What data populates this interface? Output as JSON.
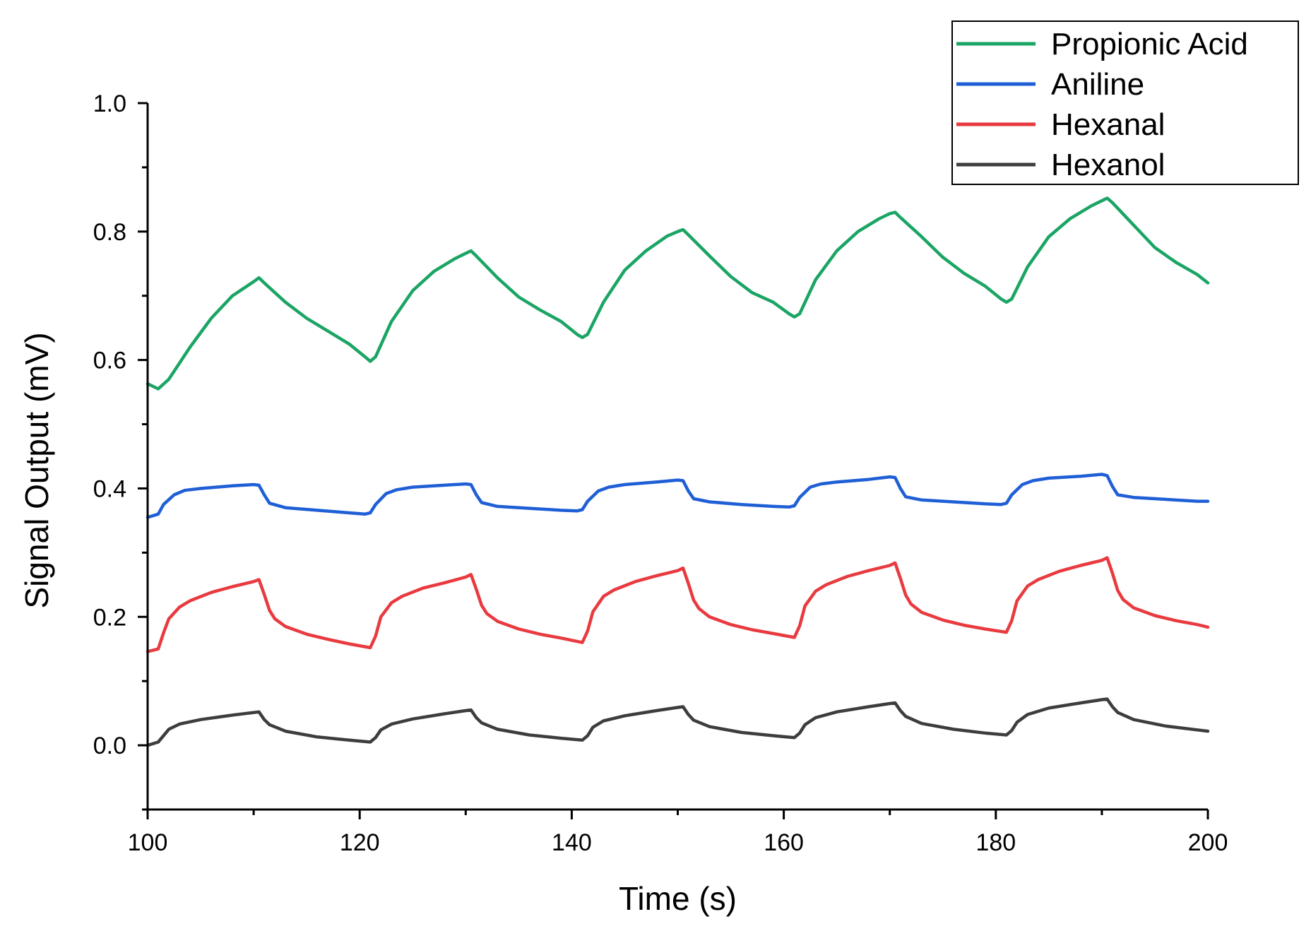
{
  "chart_data": {
    "type": "line",
    "title": "",
    "xlabel": "Time (s)",
    "ylabel": "Signal Output (mV)",
    "xlim": [
      100,
      200
    ],
    "ylim": [
      -0.1,
      1.0
    ],
    "xticks": [
      100,
      120,
      140,
      160,
      180,
      200
    ],
    "xtick_labels": [
      "100",
      "120",
      "140",
      "160",
      "180",
      "200"
    ],
    "yticks": [
      0.0,
      0.2,
      0.4,
      0.6,
      0.8,
      1.0
    ],
    "ytick_labels": [
      "0.0",
      "0.2",
      "0.4",
      "0.6",
      "0.8",
      "1.0"
    ],
    "grid": false,
    "legend_position": "top-right",
    "series": [
      {
        "name": "Propionic Acid",
        "color": "#1aa564",
        "x": [
          100,
          101,
          102,
          104,
          106,
          108,
          110,
          110.5,
          111,
          113,
          115,
          117,
          119,
          120.5,
          121,
          121.5,
          123,
          125,
          127,
          129,
          130,
          130.5,
          131,
          133,
          135,
          137,
          139,
          140.5,
          141,
          141.5,
          143,
          145,
          147,
          149,
          150,
          150.5,
          151,
          153,
          155,
          157,
          159,
          160.5,
          161,
          161.5,
          163,
          165,
          167,
          169,
          170,
          170.5,
          171,
          173,
          175,
          177,
          179,
          180.5,
          181,
          181.5,
          183,
          185,
          187,
          189,
          190,
          190.5,
          191,
          193,
          195,
          197,
          199,
          200
        ],
        "y": [
          0.563,
          0.555,
          0.57,
          0.62,
          0.665,
          0.7,
          0.722,
          0.728,
          0.72,
          0.69,
          0.665,
          0.645,
          0.625,
          0.605,
          0.598,
          0.605,
          0.66,
          0.708,
          0.738,
          0.758,
          0.766,
          0.77,
          0.762,
          0.728,
          0.698,
          0.678,
          0.66,
          0.64,
          0.635,
          0.64,
          0.69,
          0.74,
          0.77,
          0.793,
          0.8,
          0.803,
          0.795,
          0.762,
          0.73,
          0.705,
          0.69,
          0.672,
          0.667,
          0.672,
          0.725,
          0.77,
          0.8,
          0.82,
          0.828,
          0.83,
          0.822,
          0.792,
          0.76,
          0.735,
          0.715,
          0.695,
          0.69,
          0.695,
          0.745,
          0.792,
          0.82,
          0.84,
          0.848,
          0.852,
          0.845,
          0.81,
          0.775,
          0.752,
          0.733,
          0.72
        ]
      },
      {
        "name": "Aniline",
        "color": "#1f5fd6",
        "x": [
          100,
          101,
          101.5,
          102.5,
          103.5,
          105,
          108,
          110,
          110.5,
          111,
          111.5,
          113,
          116,
          119,
          120.5,
          121,
          121.5,
          122.5,
          123.5,
          125,
          128,
          130,
          130.5,
          131,
          131.5,
          133,
          136,
          139,
          140.5,
          141,
          141.5,
          142.5,
          143.5,
          145,
          148,
          150,
          150.5,
          151,
          151.5,
          153,
          156,
          159,
          160.5,
          161,
          161.5,
          162.5,
          163.5,
          165,
          168,
          170,
          170.5,
          171,
          171.5,
          173,
          176,
          179,
          180.5,
          181,
          181.5,
          182.5,
          183.5,
          185,
          188,
          190,
          190.5,
          191,
          191.5,
          193,
          196,
          199,
          200
        ],
        "y": [
          0.355,
          0.36,
          0.375,
          0.39,
          0.397,
          0.4,
          0.404,
          0.406,
          0.405,
          0.39,
          0.377,
          0.37,
          0.366,
          0.362,
          0.36,
          0.362,
          0.375,
          0.392,
          0.398,
          0.402,
          0.405,
          0.407,
          0.406,
          0.39,
          0.378,
          0.372,
          0.369,
          0.366,
          0.365,
          0.367,
          0.38,
          0.396,
          0.402,
          0.406,
          0.41,
          0.413,
          0.412,
          0.396,
          0.384,
          0.379,
          0.375,
          0.372,
          0.371,
          0.373,
          0.386,
          0.402,
          0.407,
          0.41,
          0.414,
          0.418,
          0.417,
          0.4,
          0.387,
          0.382,
          0.379,
          0.376,
          0.375,
          0.377,
          0.39,
          0.406,
          0.412,
          0.416,
          0.419,
          0.422,
          0.42,
          0.403,
          0.39,
          0.386,
          0.383,
          0.38,
          0.38
        ]
      },
      {
        "name": "Hexanal",
        "color": "#e83a3f",
        "x": [
          100,
          101,
          101.5,
          102,
          103,
          104,
          106,
          108,
          110,
          110.5,
          111,
          111.5,
          112,
          113,
          115,
          117,
          119,
          121,
          121.5,
          122,
          123,
          124,
          126,
          128,
          130,
          130.5,
          131,
          131.5,
          132,
          133,
          135,
          137,
          139,
          141,
          141.5,
          142,
          143,
          144,
          146,
          148,
          150,
          150.5,
          151,
          151.5,
          152,
          153,
          155,
          157,
          159,
          161,
          161.5,
          162,
          163,
          164,
          166,
          168,
          170,
          170.5,
          171,
          171.5,
          172,
          173,
          175,
          177,
          179,
          181,
          181.5,
          182,
          183,
          184,
          186,
          188,
          190,
          190.5,
          191,
          191.5,
          192,
          193,
          195,
          197,
          199,
          200
        ],
        "y": [
          0.146,
          0.15,
          0.175,
          0.197,
          0.215,
          0.225,
          0.238,
          0.247,
          0.255,
          0.258,
          0.235,
          0.21,
          0.197,
          0.185,
          0.173,
          0.165,
          0.158,
          0.152,
          0.17,
          0.2,
          0.222,
          0.232,
          0.245,
          0.253,
          0.262,
          0.266,
          0.243,
          0.218,
          0.205,
          0.193,
          0.181,
          0.173,
          0.167,
          0.16,
          0.178,
          0.208,
          0.232,
          0.242,
          0.255,
          0.264,
          0.272,
          0.276,
          0.252,
          0.226,
          0.213,
          0.2,
          0.188,
          0.18,
          0.174,
          0.168,
          0.186,
          0.217,
          0.24,
          0.25,
          0.263,
          0.272,
          0.28,
          0.284,
          0.26,
          0.234,
          0.22,
          0.207,
          0.195,
          0.187,
          0.181,
          0.176,
          0.194,
          0.225,
          0.248,
          0.258,
          0.271,
          0.28,
          0.288,
          0.292,
          0.268,
          0.241,
          0.227,
          0.214,
          0.202,
          0.194,
          0.188,
          0.184
        ]
      },
      {
        "name": "Hexanol",
        "color": "#3d3d3d",
        "x": [
          100,
          101,
          101.5,
          102,
          103,
          105,
          108,
          110,
          110.5,
          111,
          111.5,
          113,
          116,
          119,
          121,
          121.5,
          122,
          123,
          125,
          128,
          130,
          130.5,
          131,
          131.5,
          133,
          136,
          139,
          141,
          141.5,
          142,
          143,
          145,
          148,
          150,
          150.5,
          151,
          151.5,
          153,
          156,
          159,
          161,
          161.5,
          162,
          163,
          165,
          168,
          170,
          170.5,
          171,
          171.5,
          173,
          176,
          179,
          181,
          181.5,
          182,
          183,
          185,
          188,
          190,
          190.5,
          191,
          191.5,
          193,
          196,
          199,
          200
        ],
        "y": [
          0.0,
          0.005,
          0.015,
          0.025,
          0.033,
          0.04,
          0.047,
          0.051,
          0.052,
          0.04,
          0.032,
          0.022,
          0.013,
          0.008,
          0.005,
          0.012,
          0.024,
          0.033,
          0.041,
          0.049,
          0.054,
          0.055,
          0.043,
          0.035,
          0.025,
          0.016,
          0.011,
          0.008,
          0.015,
          0.028,
          0.038,
          0.046,
          0.054,
          0.059,
          0.06,
          0.048,
          0.039,
          0.029,
          0.02,
          0.015,
          0.012,
          0.019,
          0.032,
          0.043,
          0.052,
          0.06,
          0.065,
          0.066,
          0.054,
          0.045,
          0.034,
          0.025,
          0.019,
          0.016,
          0.023,
          0.036,
          0.048,
          0.058,
          0.066,
          0.071,
          0.072,
          0.06,
          0.051,
          0.04,
          0.03,
          0.024,
          0.022
        ]
      }
    ]
  }
}
